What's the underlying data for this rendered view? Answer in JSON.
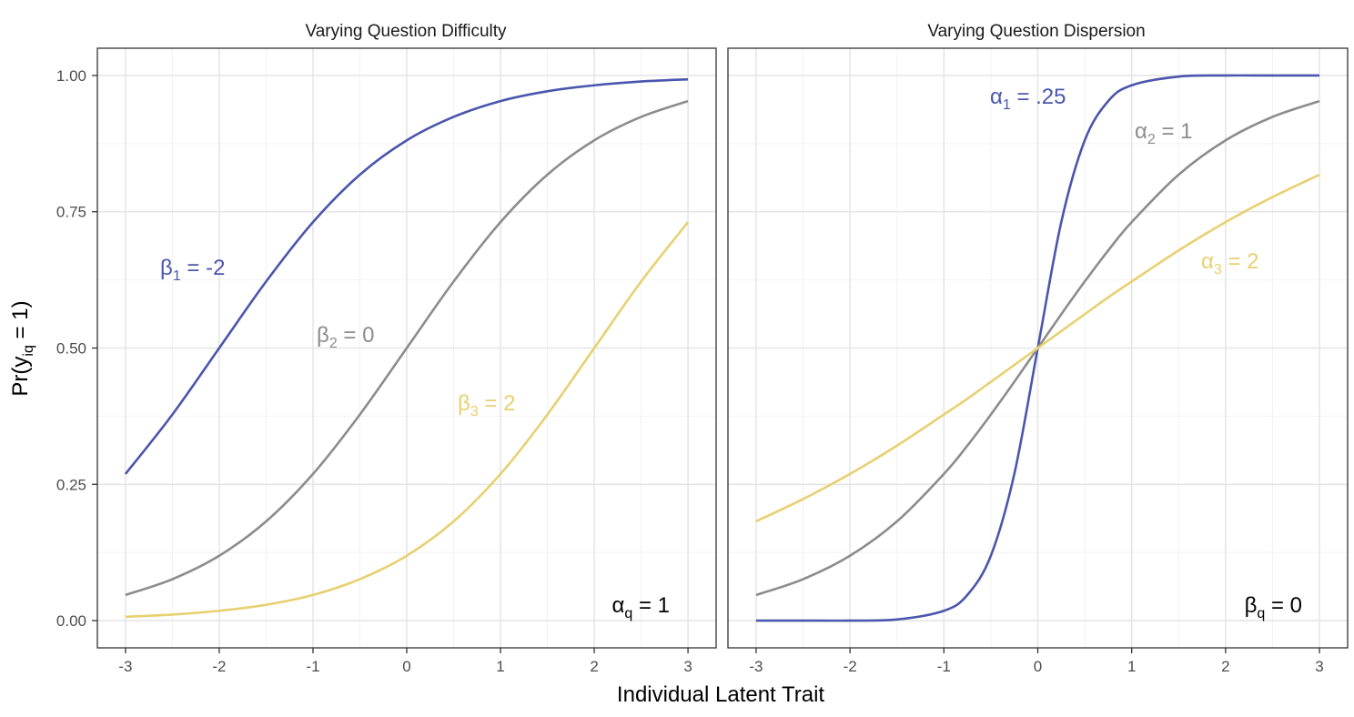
{
  "figure": {
    "xlabel": "Individual Latent Trait",
    "ylabel": "Pr(y",
    "ylabel_sub": "iq",
    "ylabel_end": " = 1)"
  },
  "colors": {
    "series1": "#4a56ad",
    "series2": "#8c8c8c",
    "series3": "#e8d070",
    "panel_border": "#333333",
    "grid_major": "#e6e6e6",
    "grid_minor": "#f2f2f2"
  },
  "chart_data": [
    {
      "type": "line",
      "title": "Varying Question Difficulty",
      "xlim": [
        -3.3,
        3.3
      ],
      "ylim": [
        -0.05,
        1.05
      ],
      "x_ticks": [
        -3,
        -2,
        -1,
        0,
        1,
        2,
        3
      ],
      "x_tick_labels": [
        "-3",
        "-2",
        "-1",
        "0",
        "1",
        "2",
        "3"
      ],
      "y_ticks": [
        0.0,
        0.25,
        0.5,
        0.75,
        1.0
      ],
      "y_tick_labels": [
        "0.00",
        "0.25",
        "0.50",
        "0.75",
        "1.00"
      ],
      "grid": true,
      "x": [
        -3,
        -2.5,
        -2,
        -1.5,
        -1,
        -0.5,
        0,
        0.5,
        1,
        1.5,
        2,
        2.5,
        3
      ],
      "series": [
        {
          "values": [
            0.269,
            0.378,
            0.5,
            0.622,
            0.731,
            0.818,
            0.881,
            0.924,
            0.953,
            0.971,
            0.982,
            0.989,
            0.993
          ],
          "label_sym": "β",
          "label_sub": "1",
          "label_rest": " = -2",
          "color_key": "series1"
        },
        {
          "values": [
            0.047,
            0.076,
            0.119,
            0.182,
            0.269,
            0.378,
            0.5,
            0.622,
            0.731,
            0.818,
            0.881,
            0.924,
            0.953
          ],
          "label_sym": "β",
          "label_sub": "2",
          "label_rest": " = 0",
          "color_key": "series2"
        },
        {
          "values": [
            0.007,
            0.011,
            0.018,
            0.029,
            0.047,
            0.076,
            0.119,
            0.182,
            0.269,
            0.378,
            0.5,
            0.622,
            0.731
          ],
          "label_sym": "β",
          "label_sub": "3",
          "label_rest": " = 2",
          "color_key": "series3"
        }
      ],
      "annotation": {
        "sym": "α",
        "sub": "q",
        "rest": " = 1"
      }
    },
    {
      "type": "line",
      "title": "Varying Question Dispersion",
      "xlim": [
        -3.3,
        3.3
      ],
      "ylim": [
        -0.05,
        1.05
      ],
      "x_ticks": [
        -3,
        -2,
        -1,
        0,
        1,
        2,
        3
      ],
      "x_tick_labels": [
        "-3",
        "-2",
        "-1",
        "0",
        "1",
        "2",
        "3"
      ],
      "y_ticks": [
        0.0,
        0.25,
        0.5,
        0.75,
        1.0
      ],
      "grid": true,
      "x": [
        -3,
        -2.5,
        -2,
        -1.5,
        -1,
        -0.75,
        -0.5,
        -0.25,
        0,
        0.25,
        0.5,
        0.75,
        1,
        1.5,
        2,
        2.5,
        3
      ],
      "series": [
        {
          "values": [
            0.0,
            0.0,
            0.0,
            0.002,
            0.018,
            0.047,
            0.119,
            0.269,
            0.5,
            0.731,
            0.881,
            0.953,
            0.982,
            0.998,
            1.0,
            1.0,
            1.0
          ],
          "label_sym": "α",
          "label_sub": "1",
          "label_rest": " = .25",
          "color_key": "series1"
        },
        {
          "values": [
            0.047,
            0.076,
            0.119,
            0.182,
            0.269,
            0.321,
            0.378,
            0.438,
            0.5,
            0.562,
            0.622,
            0.679,
            0.731,
            0.818,
            0.881,
            0.924,
            0.953
          ],
          "label_sym": "α",
          "label_sub": "2",
          "label_rest": " = 1",
          "color_key": "series2"
        },
        {
          "values": [
            0.182,
            0.223,
            0.269,
            0.321,
            0.378,
            0.407,
            0.438,
            0.469,
            0.5,
            0.531,
            0.562,
            0.593,
            0.622,
            0.679,
            0.731,
            0.777,
            0.818
          ],
          "label_sym": "α",
          "label_sub": "3",
          "label_rest": " = 2",
          "color_key": "series3"
        }
      ],
      "annotation": {
        "sym": "β",
        "sub": "q",
        "rest": " = 0"
      }
    }
  ]
}
